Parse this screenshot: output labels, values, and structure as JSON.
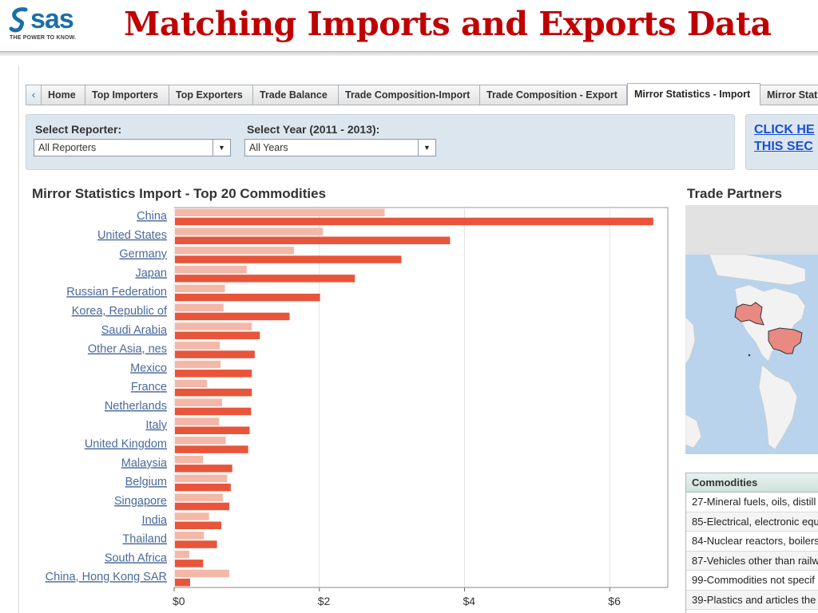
{
  "slide": {
    "title": "Matching Imports and Exports Data",
    "logo_text": "sas",
    "logo_tagline": "THE POWER TO KNOW."
  },
  "tabs": [
    {
      "label": "Home"
    },
    {
      "label": "Top Importers"
    },
    {
      "label": "Top Exporters"
    },
    {
      "label": "Trade Balance"
    },
    {
      "label": "Trade Composition-Import"
    },
    {
      "label": "Trade Composition - Export"
    },
    {
      "label": "Mirror Statistics - Import",
      "active": true
    },
    {
      "label": "Mirror Stati"
    }
  ],
  "filters": {
    "reporter_label": "Select Reporter:",
    "reporter_value": "All Reporters",
    "year_label": "Select Year (2011 - 2013):",
    "year_value": "All Years"
  },
  "link_box": {
    "line1": "CLICK HE",
    "line2": "THIS SEC"
  },
  "trade_partners": {
    "title": "Trade Partners"
  },
  "commodities": {
    "header": "Commodities",
    "rows": [
      "27-Mineral fuels, oils, distill",
      "85-Electrical, electronic equ",
      "84-Nuclear reactors, boilers",
      "87-Vehicles other than railw",
      "99-Commodities not specif",
      "39-Plastics and articles the"
    ]
  },
  "colors": {
    "series_light": "#f4b8a8",
    "series_dark": "#e8553a",
    "link_blue": "#1a4fd6",
    "title_red": "#c00000"
  },
  "chart_data": {
    "type": "bar",
    "orientation": "horizontal",
    "title": "Mirror Statistics Import - Top 20 Commodities",
    "categories": [
      "China",
      "United States",
      "Germany",
      "Japan",
      "Russian Federation",
      "Korea, Republic of",
      "Saudi Arabia",
      "Other Asia, nes",
      "Mexico",
      "France",
      "Netherlands",
      "Italy",
      "United Kingdom",
      "Malaysia",
      "Belgium",
      "Singapore",
      "India",
      "Thailand",
      "South Africa",
      "China, Hong Kong SAR"
    ],
    "series": [
      {
        "values": [
          2.9,
          2.05,
          1.65,
          1.0,
          0.7,
          0.68,
          1.07,
          0.63,
          0.64,
          0.45,
          0.66,
          0.62,
          0.71,
          0.4,
          0.73,
          0.67,
          0.48,
          0.41,
          0.21,
          0.76
        ]
      },
      {
        "values": [
          6.6,
          3.8,
          3.13,
          2.49,
          2.01,
          1.59,
          1.18,
          1.11,
          1.07,
          1.07,
          1.06,
          1.04,
          1.02,
          0.8,
          0.78,
          0.76,
          0.65,
          0.59,
          0.4,
          0.22
        ]
      }
    ],
    "x_ticks": [
      "$0",
      "$2",
      "$4",
      "$6"
    ],
    "x_tick_values": [
      0,
      2,
      4,
      6
    ],
    "xlim": [
      0,
      6.8
    ],
    "grid": true
  }
}
